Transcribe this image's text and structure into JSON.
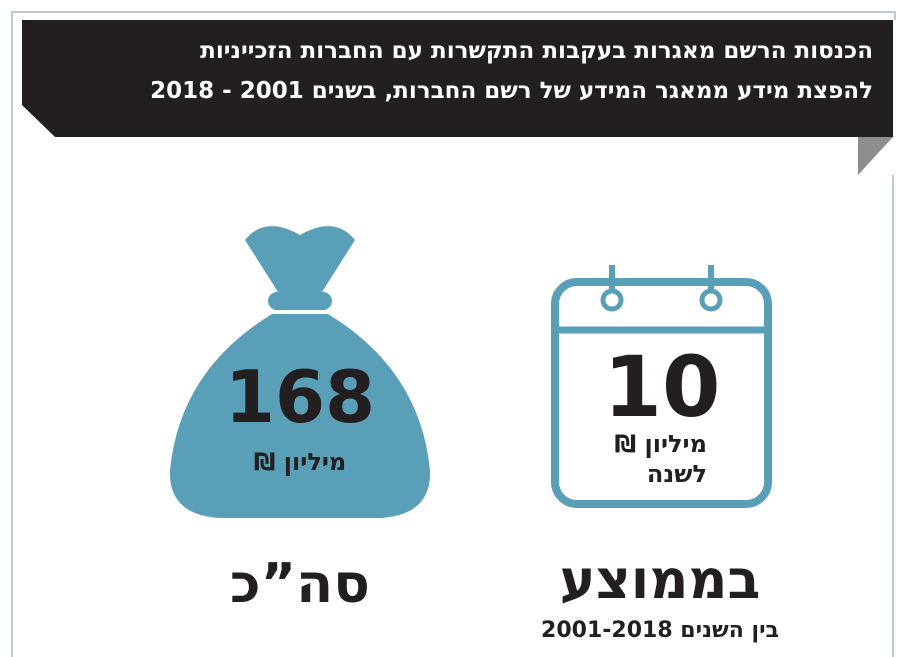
{
  "header": {
    "title_lines": [
      "הכנסות הרשם מאגרות בעקבות התקשרות עם החברות הזכייניות",
      "להפצת מידע ממאגר המידע של רשם החברות, בשנים 2001 - 2018"
    ]
  },
  "total": {
    "value": "168",
    "unit": "מיליון ₪",
    "caption": "סה”כ"
  },
  "average": {
    "value": "10",
    "unit": "מיליון ₪",
    "per": "לשנה",
    "caption": "בממוצע",
    "subcaption": "בין השנים 2001-2018"
  }
}
